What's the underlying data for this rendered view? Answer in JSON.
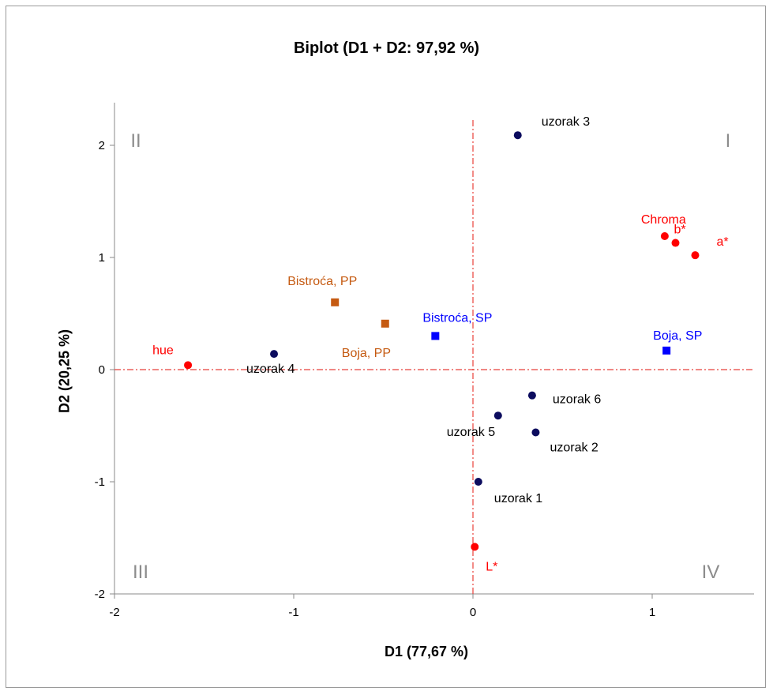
{
  "chart_data": {
    "type": "scatter",
    "title": "Biplot (D1 + D2: 97,92 %)",
    "xlabel": "D1 (77,67 %)",
    "ylabel": "D2 (20,25 %)",
    "xlim": [
      -2,
      1.5
    ],
    "ylim": [
      -2,
      2.2
    ],
    "xticks": [
      -2,
      -1,
      0,
      1
    ],
    "yticks": [
      -2,
      -1,
      0,
      1,
      2
    ],
    "xtick_labels": [
      "-2",
      "-1",
      "0",
      "1"
    ],
    "ytick_labels": [
      "-2",
      "-1",
      "0",
      "1",
      "2"
    ],
    "grid": false,
    "reference_lines": {
      "x": 0,
      "y": 0,
      "color": "#e8403a",
      "style": "dash-dot"
    },
    "quadrant_labels": [
      "I",
      "II",
      "III",
      "IV"
    ],
    "series": [
      {
        "marker": "circle",
        "color": "#0c0c5e",
        "label_color": "#000000",
        "points": [
          {
            "label": "uzorak 3",
            "x": 0.25,
            "y": 2.09
          },
          {
            "label": "uzorak 4",
            "x": -1.11,
            "y": 0.14
          },
          {
            "label": "uzorak 6",
            "x": 0.33,
            "y": -0.23
          },
          {
            "label": "uzorak 5",
            "x": 0.14,
            "y": -0.41
          },
          {
            "label": "uzorak 2",
            "x": 0.35,
            "y": -0.56
          },
          {
            "label": "uzorak 1",
            "x": 0.03,
            "y": -1.0
          }
        ]
      },
      {
        "marker": "circle",
        "color": "#ff0000",
        "label_color": "#ff0000",
        "points": [
          {
            "label": "Chroma",
            "x": 1.07,
            "y": 1.19
          },
          {
            "label": "b*",
            "x": 1.13,
            "y": 1.13
          },
          {
            "label": "a*",
            "x": 1.24,
            "y": 1.02
          },
          {
            "label": "hue",
            "x": -1.59,
            "y": 0.04
          },
          {
            "label": "L*",
            "x": 0.01,
            "y": -1.58
          }
        ]
      },
      {
        "marker": "square",
        "color": "#c55a11",
        "label_color": "#c55a11",
        "points": [
          {
            "label": "Bistroća, PP",
            "x": -0.77,
            "y": 0.6
          },
          {
            "label": "Boja, PP",
            "x": -0.49,
            "y": 0.41
          }
        ]
      },
      {
        "marker": "square",
        "color": "#0000ff",
        "label_color": "#0000ff",
        "points": [
          {
            "label": "Bistroća, SP",
            "x": -0.21,
            "y": 0.3
          },
          {
            "label": "Boja, SP",
            "x": 1.08,
            "y": 0.17
          }
        ]
      }
    ]
  }
}
